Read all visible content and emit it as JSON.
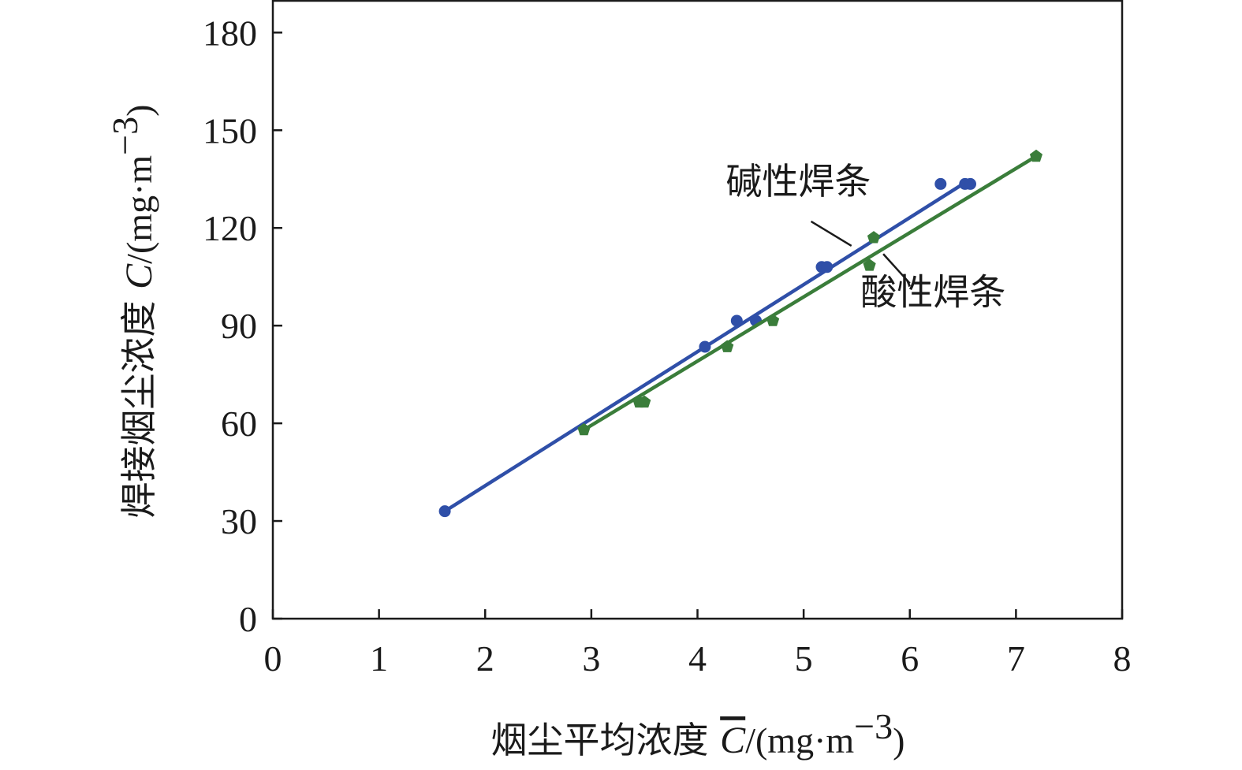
{
  "chart_data": {
    "type": "scatter",
    "xlabel": {
      "prefix": "烟尘平均浓度 ",
      "symbol": "C",
      "unit": "/(mg·m",
      "sup": "−3",
      "close": ")"
    },
    "ylabel": {
      "prefix": "焊接烟尘浓度 ",
      "symbol": "C",
      "unit": "/(mg·m",
      "sup": "−3",
      "close": ")"
    },
    "xlim": [
      0,
      8
    ],
    "ylim": [
      0,
      190
    ],
    "xticks": [
      0,
      1,
      2,
      3,
      4,
      5,
      6,
      7,
      8
    ],
    "yticks": [
      0,
      30,
      60,
      90,
      120,
      150,
      180
    ],
    "grid": false,
    "series": [
      {
        "name": "碱性焊条",
        "color": "#2f4fa8",
        "marker": "circle",
        "points": [
          [
            1.62,
            33
          ],
          [
            4.07,
            83.5
          ],
          [
            4.37,
            91.5
          ],
          [
            4.55,
            91.5
          ],
          [
            5.17,
            108
          ],
          [
            5.22,
            108
          ],
          [
            6.29,
            133.5
          ],
          [
            6.52,
            133.5
          ],
          [
            6.57,
            133.5
          ]
        ],
        "fit": [
          [
            1.62,
            33
          ],
          [
            6.55,
            134.5
          ]
        ]
      },
      {
        "name": "酸性焊条",
        "color": "#3a7d3a",
        "marker": "pentagon",
        "points": [
          [
            2.93,
            58
          ],
          [
            3.45,
            66.5
          ],
          [
            3.5,
            66.5
          ],
          [
            4.28,
            83.5
          ],
          [
            4.71,
            91.5
          ],
          [
            5.62,
            108.5
          ],
          [
            5.66,
            117
          ],
          [
            7.19,
            142
          ]
        ],
        "fit": [
          [
            2.93,
            58
          ],
          [
            7.19,
            142
          ]
        ]
      }
    ],
    "annotations": [
      {
        "series": "碱性焊条",
        "text": "碱性焊条",
        "text_at": [
          4.95,
          130.5
        ],
        "leader_from": [
          5.07,
          122
        ],
        "leader_to": [
          5.45,
          114.5
        ]
      },
      {
        "series": "酸性焊条",
        "text": "酸性焊条",
        "text_at": [
          6.22,
          96.5
        ],
        "leader_from": [
          6.0,
          103
        ],
        "leader_to": [
          5.75,
          112
        ]
      }
    ]
  }
}
